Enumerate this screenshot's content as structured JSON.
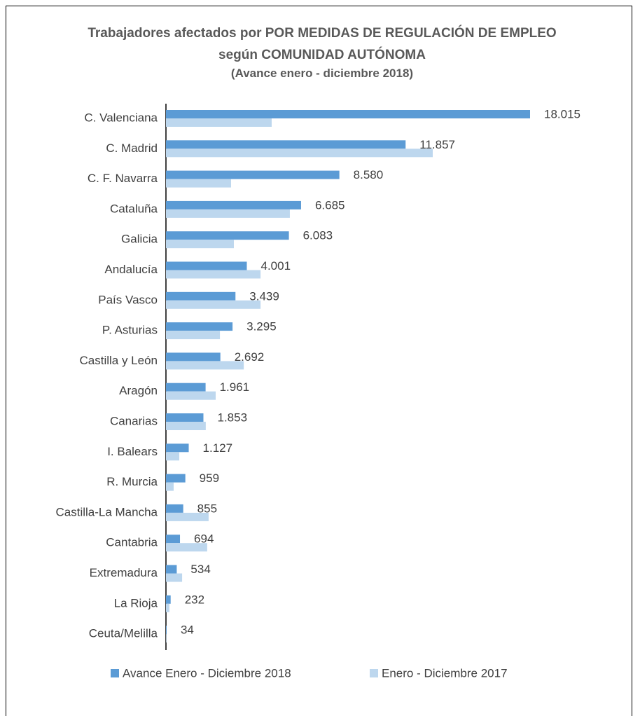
{
  "chart_data": {
    "type": "bar",
    "orientation": "horizontal",
    "title": "Trabajadores afectados por POR MEDIDAS DE REGULACIÓN DE EMPLEO según COMUNIDAD AUTÓNOMA",
    "subtitle": "(Avance enero - diciembre 2018)",
    "categories": [
      "C. Valenciana",
      "C. Madrid",
      "C. F. Navarra",
      "Cataluña",
      "Galicia",
      "Andalucía",
      "País Vasco",
      "P. Asturias",
      "Castilla y León",
      "Aragón",
      "Canarias",
      "I. Balears",
      "R. Murcia",
      "Castilla-La Mancha",
      "Cantabria",
      "Extremadura",
      "La Rioja",
      "Ceuta/Melilla"
    ],
    "series": [
      {
        "name": "Avance Enero - Diciembre 2018",
        "color": "#5b9bd5",
        "values": [
          18015,
          11857,
          8580,
          6685,
          6083,
          4001,
          3439,
          3295,
          2692,
          1961,
          1853,
          1127,
          959,
          855,
          694,
          534,
          232,
          34
        ],
        "value_labels": [
          "18.015",
          "11.857",
          "8.580",
          "6.685",
          "6.083",
          "4.001",
          "3.439",
          "3.295",
          "2.692",
          "1.961",
          "1.853",
          "1.127",
          "959",
          "855",
          "694",
          "534",
          "232",
          "34"
        ]
      },
      {
        "name": "Enero - Diciembre 2017",
        "color": "#bdd7ee",
        "values": [
          5230,
          13200,
          3220,
          6130,
          3360,
          4680,
          4680,
          2670,
          3850,
          2460,
          1970,
          660,
          380,
          2110,
          2040,
          800,
          170,
          20
        ]
      }
    ],
    "legend": "bottom"
  }
}
